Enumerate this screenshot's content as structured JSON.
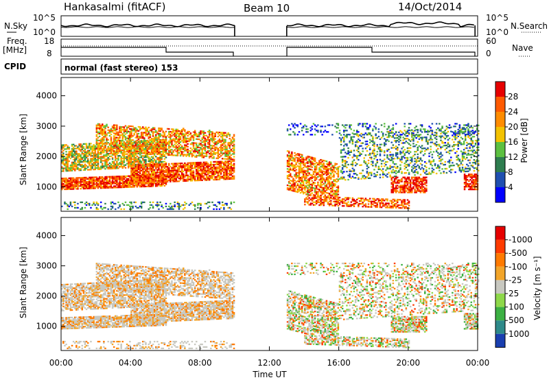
{
  "header": {
    "station": "Hankasalmi (fitACF)",
    "beam": "Beam 10",
    "date": "14/Oct/2014"
  },
  "nsky_panel": {
    "left_label": "N.Sky",
    "right_label": "N.Search",
    "left_ticks": [
      "10^5",
      "10^0"
    ],
    "right_ticks": [
      "10^5",
      "10^0"
    ]
  },
  "freq_panel": {
    "left_label_1": "Freq.",
    "left_label_2": "[MHz]",
    "right_label": "Nave",
    "left_ticks": [
      "18",
      "8"
    ],
    "right_ticks": [
      "60",
      "0"
    ]
  },
  "cpid_panel": {
    "label": "CPID",
    "text": "normal (fast stereo) 153"
  },
  "time_axis": {
    "label": "Time UT",
    "ticks": [
      "00:00",
      "04:00",
      "08:00",
      "12:00",
      "16:00",
      "20:00",
      "00:00"
    ]
  },
  "data_gap": {
    "start": "10:00",
    "end": "13:00"
  },
  "chart_data": [
    {
      "type": "heatmap",
      "name": "power",
      "ylabel": "Slant Range [km]",
      "yticks": [
        1000,
        2000,
        3000,
        4000
      ],
      "ylim": [
        200,
        4600
      ],
      "xlim": [
        "00:00",
        "24:00"
      ],
      "colorbar": {
        "label": "Power [dB]",
        "ticks": [
          "4",
          "8",
          "12",
          "16",
          "20",
          "24",
          "28"
        ],
        "colors": [
          "#0000ff",
          "#1f4fb0",
          "#2e7d4f",
          "#5cc040",
          "#f3c200",
          "#ff8c00",
          "#ff5a00",
          "#e60000"
        ]
      }
    },
    {
      "type": "heatmap",
      "name": "velocity",
      "ylabel": "Slant Range [km]",
      "yticks": [
        1000,
        2000,
        3000,
        4000
      ],
      "ylim": [
        200,
        4600
      ],
      "xlim": [
        "00:00",
        "24:00"
      ],
      "colorbar": {
        "label": "Velocity [m s⁻¹]",
        "ticks": [
          "1000",
          "500",
          "100",
          "25",
          "-25",
          "-100",
          "-500",
          "-1000"
        ],
        "colors": [
          "#1a3fb0",
          "#2e8a8a",
          "#3cb043",
          "#8ed84a",
          "#c8c8c0",
          "#f2a52a",
          "#ff7a00",
          "#ff3b00",
          "#e60000"
        ]
      }
    }
  ]
}
